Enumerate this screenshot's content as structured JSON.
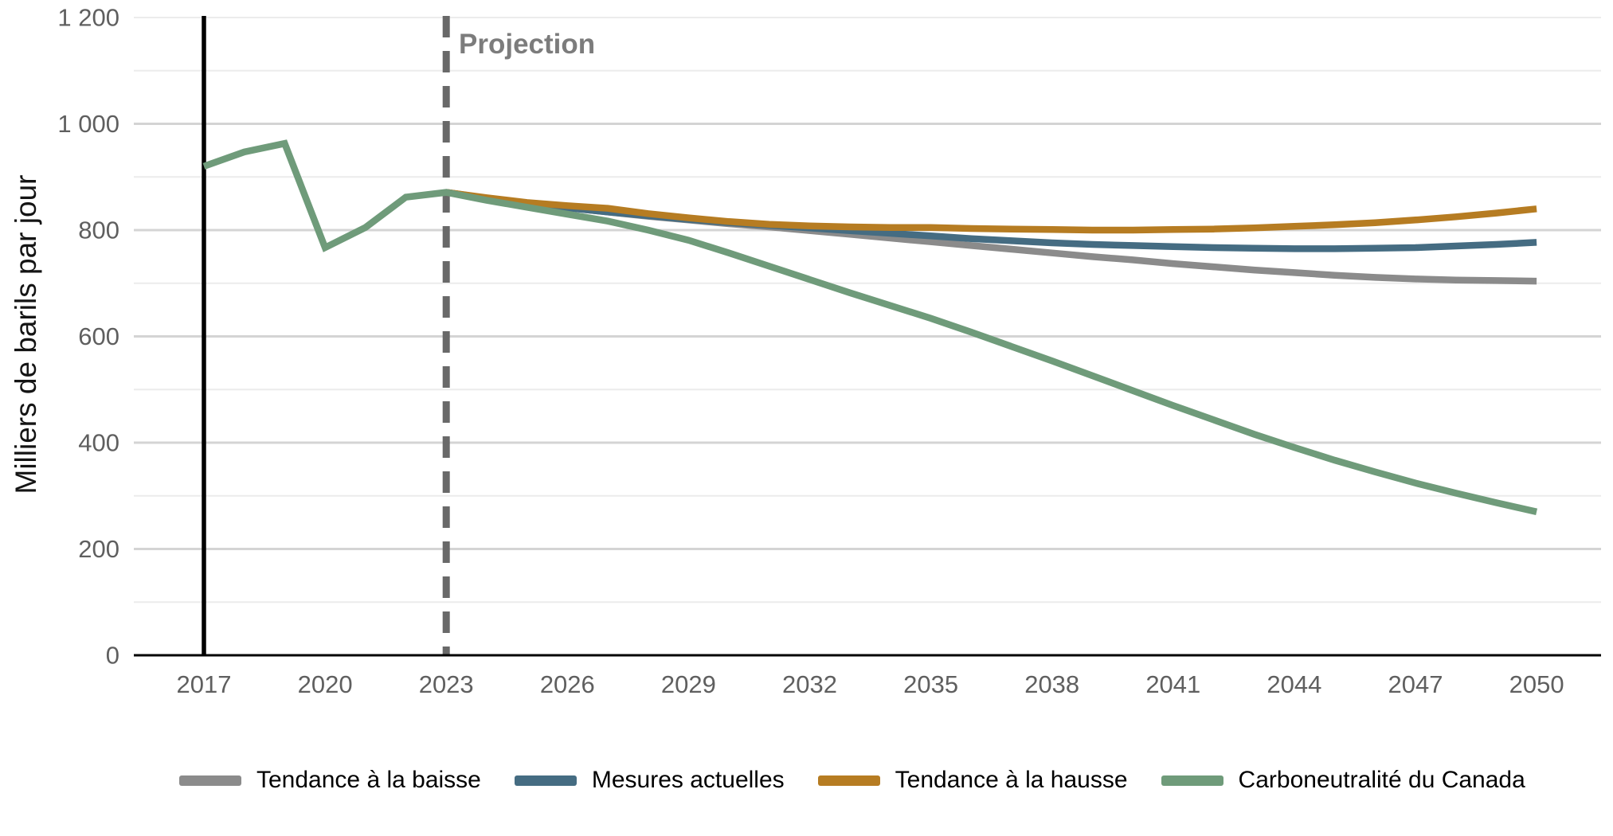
{
  "chart_data": {
    "type": "line",
    "title": "",
    "xlabel": "",
    "ylabel": "Milliers de barils par jour",
    "ylim": [
      0,
      1200
    ],
    "xlim": [
      2015.3,
      2051.6
    ],
    "grid": "horizontal, every 100; darker lines every 200",
    "legend_position": "bottom",
    "colors": {
      "lower_trend": "#8b8b8b",
      "current_measures": "#456c82",
      "higher_trend": "#b67c22",
      "net_zero": "#6f9b7a",
      "gridline_minor": "#ececec",
      "gridline_major": "#d4d4d4",
      "axis_line": "#000000",
      "history_vline": "#000000",
      "projection_vline": "#696969",
      "tick_label": "#5f5f5f",
      "projection_label": "#7c7c7c"
    },
    "y_ticks": [
      {
        "value": 0,
        "label": "0"
      },
      {
        "value": 200,
        "label": "200"
      },
      {
        "value": 400,
        "label": "400"
      },
      {
        "value": 600,
        "label": "600"
      },
      {
        "value": 800,
        "label": "800"
      },
      {
        "value": 1000,
        "label": "1 000"
      },
      {
        "value": 1200,
        "label": "1 200"
      }
    ],
    "x_ticks": [
      {
        "value": 2017,
        "label": "2017"
      },
      {
        "value": 2020,
        "label": "2020"
      },
      {
        "value": 2023,
        "label": "2023"
      },
      {
        "value": 2026,
        "label": "2026"
      },
      {
        "value": 2029,
        "label": "2029"
      },
      {
        "value": 2032,
        "label": "2032"
      },
      {
        "value": 2035,
        "label": "2035"
      },
      {
        "value": 2038,
        "label": "2038"
      },
      {
        "value": 2041,
        "label": "2041"
      },
      {
        "value": 2044,
        "label": "2044"
      },
      {
        "value": 2047,
        "label": "2047"
      },
      {
        "value": 2050,
        "label": "2050"
      }
    ],
    "annotations": {
      "projection_label": "Projection",
      "history_vline_year": 2017,
      "projection_vline_year": 2023
    },
    "series": [
      {
        "name": "Tendance à la baisse",
        "color": "#8b8b8b",
        "x": [
          2023,
          2024,
          2025,
          2026,
          2027,
          2028,
          2029,
          2030,
          2031,
          2032,
          2033,
          2034,
          2035,
          2036,
          2037,
          2038,
          2039,
          2040,
          2041,
          2042,
          2043,
          2044,
          2045,
          2046,
          2047,
          2048,
          2049,
          2050
        ],
        "values": [
          871,
          860,
          850,
          842,
          834,
          826,
          819,
          812,
          806,
          799,
          792,
          785,
          778,
          771,
          764,
          757,
          750,
          744,
          737,
          731,
          725,
          720,
          715,
          711,
          708,
          706,
          705,
          704
        ]
      },
      {
        "name": "Mesures actuelles",
        "color": "#456c82",
        "x": [
          2023,
          2024,
          2025,
          2026,
          2027,
          2028,
          2029,
          2030,
          2031,
          2032,
          2033,
          2034,
          2035,
          2036,
          2037,
          2038,
          2039,
          2040,
          2041,
          2042,
          2043,
          2044,
          2045,
          2046,
          2047,
          2048,
          2049,
          2050
        ],
        "values": [
          871,
          860,
          850,
          842,
          834,
          827,
          820,
          814,
          809,
          804,
          799,
          794,
          789,
          784,
          780,
          776,
          773,
          771,
          769,
          767,
          766,
          765,
          765,
          766,
          767,
          770,
          773,
          777
        ]
      },
      {
        "name": "Tendance à la hausse",
        "color": "#b67c22",
        "x": [
          2023,
          2024,
          2025,
          2026,
          2027,
          2028,
          2029,
          2030,
          2031,
          2032,
          2033,
          2034,
          2035,
          2036,
          2037,
          2038,
          2039,
          2040,
          2041,
          2042,
          2043,
          2044,
          2045,
          2046,
          2047,
          2048,
          2049,
          2050
        ],
        "values": [
          871,
          861,
          852,
          846,
          841,
          831,
          823,
          816,
          811,
          808,
          806,
          805,
          805,
          803,
          802,
          801,
          800,
          800,
          801,
          802,
          804,
          807,
          810,
          814,
          819,
          825,
          832,
          840
        ]
      },
      {
        "name": "Carboneutralité du Canada",
        "color": "#6f9b7a",
        "x": [
          2017,
          2018,
          2019,
          2020,
          2021,
          2022,
          2023,
          2024,
          2025,
          2026,
          2027,
          2028,
          2029,
          2030,
          2031,
          2032,
          2033,
          2034,
          2035,
          2036,
          2037,
          2038,
          2039,
          2040,
          2041,
          2042,
          2043,
          2044,
          2045,
          2046,
          2047,
          2048,
          2049,
          2050
        ],
        "values": [
          920,
          947,
          963,
          767,
          805,
          862,
          871,
          856,
          843,
          830,
          817,
          800,
          781,
          757,
          732,
          707,
          682,
          658,
          634,
          608,
          581,
          554,
          526,
          498,
          470,
          443,
          416,
          391,
          367,
          345,
          324,
          305,
          287,
          270
        ]
      }
    ],
    "legend": [
      "Tendance à la baisse",
      "Mesures actuelles",
      "Tendance à la hausse",
      "Carboneutralité du Canada"
    ]
  }
}
